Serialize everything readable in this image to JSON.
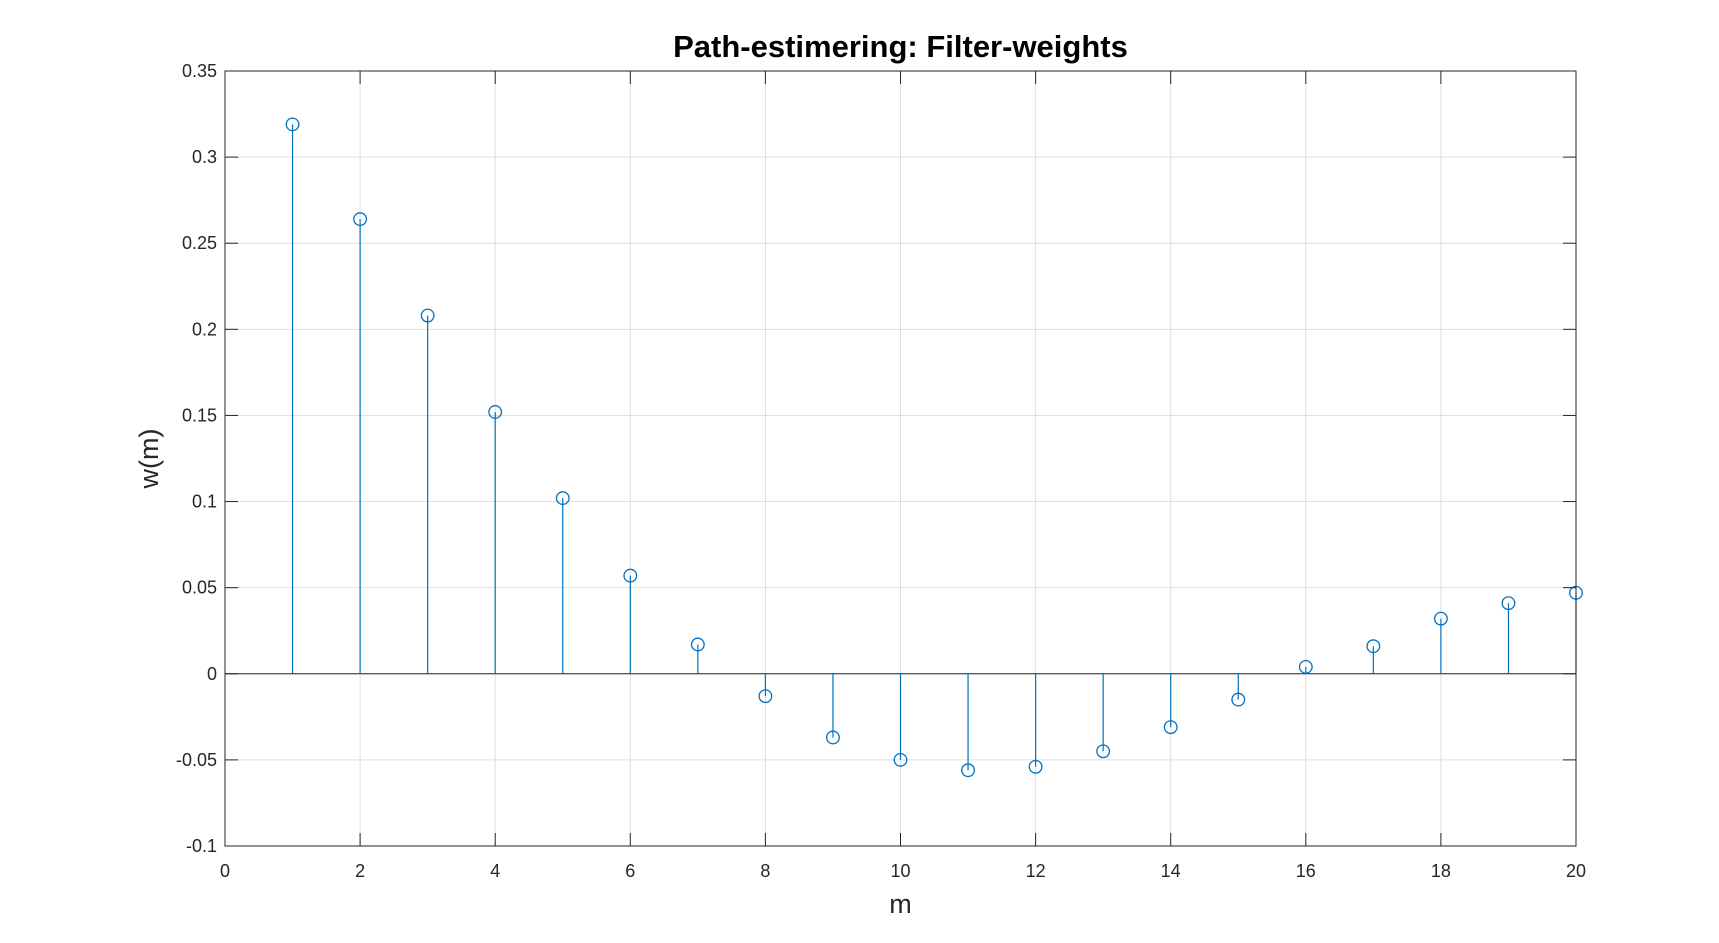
{
  "chart_data": {
    "type": "stem",
    "title": "Path-estimering: Filter-weights",
    "xlabel": "m",
    "ylabel": "w(m)",
    "xlim": [
      0,
      20
    ],
    "ylim": [
      -0.1,
      0.35
    ],
    "xticks": [
      0,
      2,
      4,
      6,
      8,
      10,
      12,
      14,
      16,
      18,
      20
    ],
    "yticks": [
      -0.1,
      -0.05,
      0,
      0.05,
      0.1,
      0.15,
      0.2,
      0.25,
      0.3,
      0.35
    ],
    "xtick_labels": [
      "0",
      "2",
      "4",
      "6",
      "8",
      "10",
      "12",
      "14",
      "16",
      "18",
      "20"
    ],
    "ytick_labels": [
      "-0.1",
      "-0.05",
      "0",
      "0.05",
      "0.1",
      "0.15",
      "0.2",
      "0.25",
      "0.3",
      "0.35"
    ],
    "grid": true,
    "box": true,
    "series": [
      {
        "color": "#0072BD",
        "marker": "circle",
        "x": [
          1,
          2,
          3,
          4,
          5,
          6,
          7,
          8,
          9,
          10,
          11,
          12,
          13,
          14,
          15,
          16,
          17,
          18,
          19,
          20
        ],
        "values": [
          0.319,
          0.264,
          0.208,
          0.152,
          0.102,
          0.057,
          0.017,
          -0.013,
          -0.037,
          -0.05,
          -0.056,
          -0.054,
          -0.045,
          -0.031,
          -0.015,
          0.004,
          0.016,
          0.032,
          0.041,
          0.047
        ]
      }
    ]
  }
}
